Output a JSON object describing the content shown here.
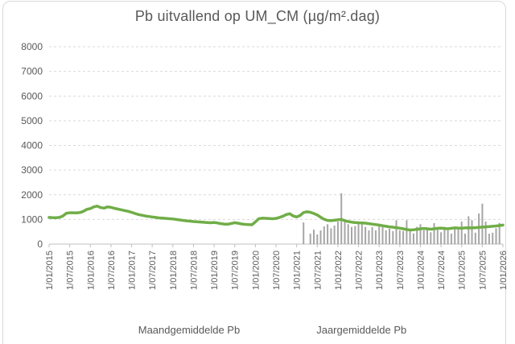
{
  "chart_data": {
    "type": "bar+line",
    "title": "Pb uitvallend op UM_CM (µg/m².dag)",
    "xlabel": "",
    "ylabel": "",
    "ylim": [
      0,
      8000
    ],
    "grid": "horizontal-dashed",
    "legend_position": "bottom",
    "y_ticks": [
      0,
      1000,
      2000,
      3000,
      4000,
      5000,
      6000,
      7000,
      8000
    ],
    "x_tick_interval_months": 6,
    "x_tick_labels": [
      "1/01/2015",
      "1/07/2015",
      "1/01/2016",
      "1/07/2016",
      "1/01/2017",
      "1/07/2017",
      "1/01/2018",
      "1/07/2018",
      "1/01/2019",
      "1/07/2019",
      "1/01/2020",
      "1/07/2020",
      "1/01/2021",
      "1/07/2021",
      "1/01/2022",
      "1/07/2022",
      "1/01/2023",
      "1/07/2023",
      "1/01/2024",
      "1/07/2024",
      "1/01/2025",
      "1/07/2025",
      "1/01/2026"
    ],
    "total_months": 132,
    "colors": {
      "bar": "#a6a6a6",
      "line": "#70ad47",
      "grid": "#d9d9d9",
      "axis": "#bfbfbf",
      "text": "#595959"
    },
    "series": [
      {
        "name": "Maandgemiddelde Pb",
        "type": "bar",
        "color": "#a6a6a6",
        "start_month_index": 74,
        "start_month": "2021-03",
        "values": [
          880,
          0,
          420,
          585,
          390,
          555,
          715,
          805,
          640,
          750,
          915,
          2060,
          915,
          805,
          695,
          730,
          860,
          805,
          695,
          560,
          695,
          560,
          805,
          695,
          560,
          625,
          530,
          970,
          560,
          530,
          970,
          560,
          430,
          700,
          805,
          560,
          640,
          480,
          850,
          640,
          480,
          700,
          560,
          425,
          640,
          595,
          915,
          425,
          1130,
          970,
          465,
          1240,
          1640,
          915,
          425,
          465,
          640,
          860
        ]
      },
      {
        "name": "Jaargemiddelde Pb",
        "type": "line",
        "color": "#70ad47",
        "start_month_index": 0,
        "start_month": "2015-01",
        "values": [
          1080,
          1075,
          1070,
          1080,
          1140,
          1250,
          1270,
          1270,
          1265,
          1280,
          1330,
          1410,
          1440,
          1510,
          1540,
          1480,
          1460,
          1510,
          1490,
          1450,
          1420,
          1390,
          1360,
          1330,
          1290,
          1240,
          1200,
          1170,
          1140,
          1120,
          1100,
          1080,
          1060,
          1050,
          1040,
          1030,
          1020,
          1000,
          980,
          960,
          945,
          930,
          915,
          905,
          895,
          885,
          875,
          865,
          880,
          855,
          830,
          810,
          805,
          835,
          870,
          845,
          815,
          800,
          790,
          785,
          900,
          1030,
          1050,
          1045,
          1035,
          1030,
          1040,
          1080,
          1130,
          1200,
          1230,
          1140,
          1100,
          1160,
          1280,
          1310,
          1290,
          1240,
          1180,
          1090,
          1010,
          960,
          950,
          965,
          985,
          1000,
          950,
          915,
          890,
          875,
          865,
          860,
          850,
          830,
          810,
          790,
          770,
          745,
          720,
          700,
          685,
          665,
          645,
          620,
          590,
          570,
          580,
          600,
          620,
          635,
          620,
          605,
          620,
          640,
          650,
          635,
          620,
          640,
          660,
          650,
          645,
          655,
          660,
          655,
          665,
          680,
          690,
          700,
          710,
          720,
          735,
          750,
          770
        ]
      }
    ]
  },
  "legend": {
    "maand_label": "Maandgemiddelde Pb",
    "jaar_label": "Jaargemiddelde Pb"
  }
}
